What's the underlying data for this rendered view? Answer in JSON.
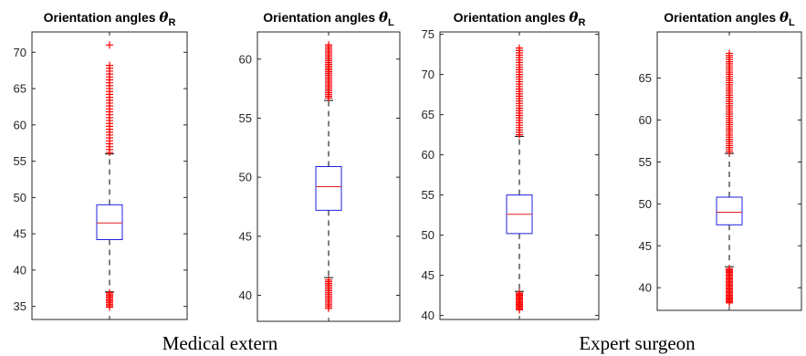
{
  "chart_data": [
    {
      "type": "box",
      "title": "Orientation angles",
      "title_symbol": "θ",
      "title_subscript": "R",
      "ylim": [
        33.2,
        72.8
      ],
      "yticks": [
        35,
        40,
        45,
        50,
        55,
        60,
        65,
        70
      ],
      "box": {
        "q1": 44.2,
        "median": 46.5,
        "q3": 49.0,
        "whisker_low": 37.0,
        "whisker_high": 56.0
      },
      "outliers_high": {
        "from": 56.2,
        "to": 68.2,
        "step": 0.4
      },
      "outliers_low": {
        "from": 34.9,
        "to": 36.9,
        "step": 0.2
      },
      "extra_outliers": [
        71.0
      ]
    },
    {
      "type": "box",
      "title": "Orientation angles",
      "title_symbol": "θ",
      "title_subscript": "L",
      "ylim": [
        37.8,
        62.3
      ],
      "yticks": [
        40,
        45,
        50,
        55,
        60
      ],
      "box": {
        "q1": 47.2,
        "median": 49.2,
        "q3": 50.9,
        "whisker_low": 41.5,
        "whisker_high": 56.5
      },
      "outliers_high": {
        "from": 56.7,
        "to": 61.2,
        "step": 0.15
      },
      "outliers_low": {
        "from": 38.9,
        "to": 41.3,
        "step": 0.15
      },
      "extra_outliers": []
    },
    {
      "type": "box",
      "title": "Orientation angles",
      "title_symbol": "θ",
      "title_subscript": "R",
      "ylim": [
        39.5,
        75.3
      ],
      "yticks": [
        40,
        45,
        50,
        55,
        60,
        65,
        70,
        75
      ],
      "box": {
        "q1": 50.2,
        "median": 52.6,
        "q3": 55.0,
        "whisker_low": 43.0,
        "whisker_high": 62.3
      },
      "outliers_high": {
        "from": 62.5,
        "to": 73.5,
        "step": 0.3
      },
      "outliers_low": {
        "from": 40.7,
        "to": 42.8,
        "step": 0.15
      },
      "extra_outliers": []
    },
    {
      "type": "box",
      "title": "Orientation angles",
      "title_symbol": "θ",
      "title_subscript": "L",
      "ylim": [
        37.3,
        70.5
      ],
      "yticks": [
        40,
        45,
        50,
        55,
        60,
        65
      ],
      "box": {
        "q1": 47.5,
        "median": 49.0,
        "q3": 50.8,
        "whisker_low": 42.5,
        "whisker_high": 56.0
      },
      "outliers_high": {
        "from": 56.2,
        "to": 68.0,
        "step": 0.25
      },
      "outliers_low": {
        "from": 38.2,
        "to": 42.3,
        "step": 0.15
      },
      "extra_outliers": []
    }
  ],
  "group_labels": [
    "Medical extern",
    "Expert surgeon"
  ],
  "colors": {
    "box": "#2020e0",
    "median": "#e02020",
    "outlier": "#ff0000",
    "whisker": "#000000",
    "axis": "#262626"
  }
}
